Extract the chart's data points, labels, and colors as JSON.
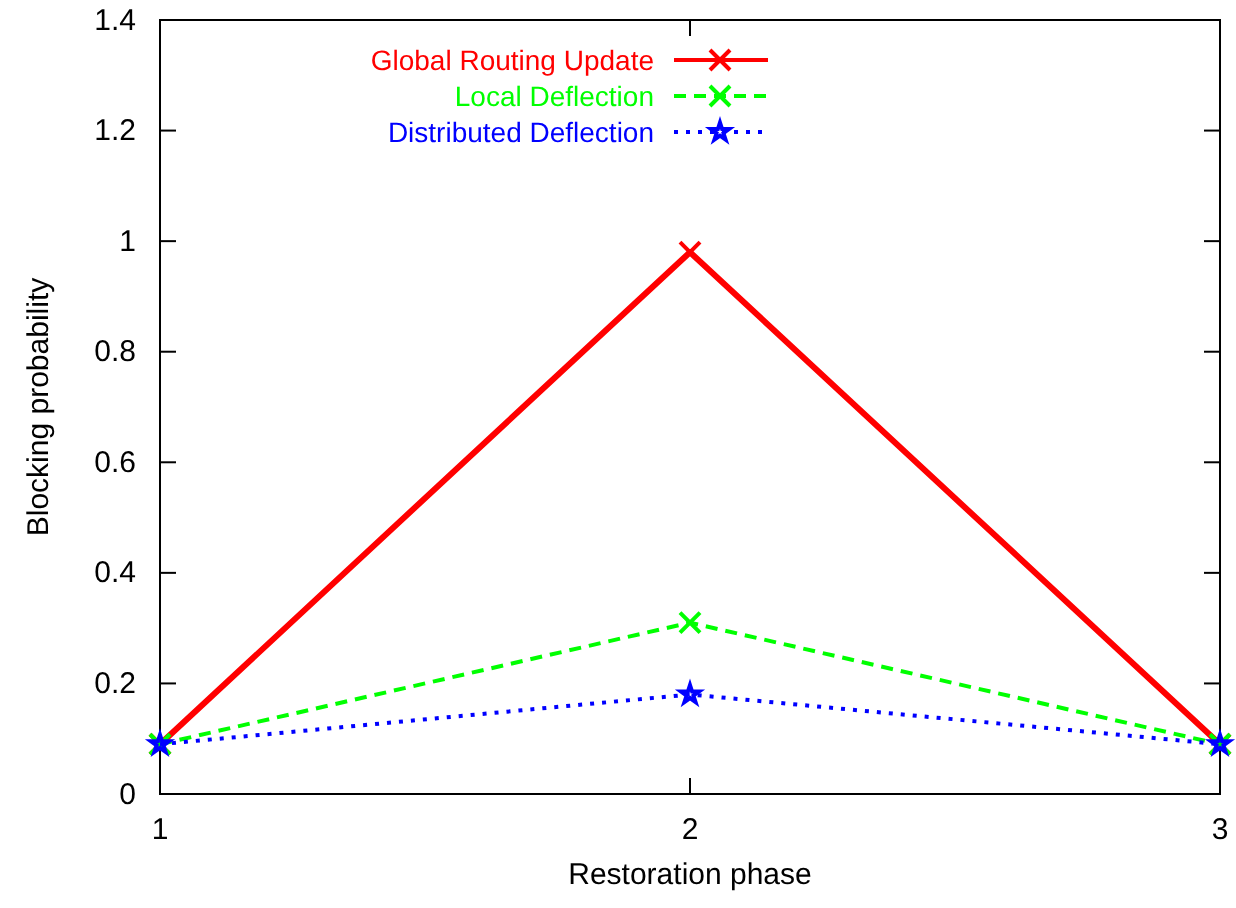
{
  "chart_data": {
    "type": "line",
    "xlabel": "Restoration phase",
    "ylabel": "Blocking probability",
    "x": [
      1,
      2,
      3
    ],
    "xlim": [
      1,
      3
    ],
    "xticks": [
      1,
      2,
      3
    ],
    "ylim": [
      0,
      1.4
    ],
    "yticks": [
      0,
      0.2,
      0.4,
      0.6,
      0.8,
      1,
      1.2,
      1.4
    ],
    "grid": false,
    "legend": "top left",
    "series": [
      {
        "name": "Global Routing Update",
        "color": "#ff0000",
        "values": [
          0.09,
          0.98,
          0.09
        ],
        "marker": "cross",
        "line_style": "solid"
      },
      {
        "name": "Local Deflection",
        "color": "#00ff00",
        "values": [
          0.09,
          0.31,
          0.09
        ],
        "marker": "cross",
        "line_style": "dashed"
      },
      {
        "name": "Distributed Deflection",
        "color": "#0000ff",
        "values": [
          0.09,
          0.18,
          0.09
        ],
        "marker": "star",
        "line_style": "dotted"
      }
    ]
  }
}
